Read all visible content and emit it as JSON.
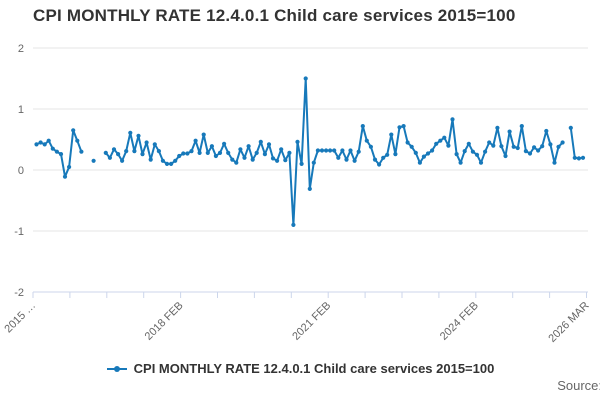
{
  "title": "CPI MONTHLY RATE 12.4.0.1 Child care services 2015=100",
  "legend": {
    "series_label": "CPI MONTHLY RATE 12.4.0.1 Child care services 2015=100"
  },
  "source_label": "Source:",
  "colors": {
    "line": "#1779ba",
    "grid": "#e6e6e6",
    "axis": "#ccd6eb",
    "tick_label": "#666666",
    "title_text": "#333333"
  },
  "chart_data": {
    "type": "line",
    "title": "CPI MONTHLY RATE 12.4.0.1 Child care services 2015=100",
    "xlabel": "",
    "ylabel": "",
    "ylim": [
      -2,
      2
    ],
    "yticks": [
      2,
      1,
      0,
      -1,
      -2
    ],
    "ytick_labels": [
      "2",
      "1",
      "0",
      "-1",
      "-2"
    ],
    "grid": "horizontal",
    "legend_position": "bottom",
    "marker": "circle",
    "x_axis": {
      "tick_count": 16,
      "labels": [
        {
          "tick_index": 0,
          "text": "2015 …"
        },
        {
          "tick_index": 4,
          "text": "2018 FEB"
        },
        {
          "tick_index": 8,
          "text": "2021 FEB"
        },
        {
          "tick_index": 12,
          "text": "2024 FEB"
        },
        {
          "tick_index": 15,
          "text": "2026 MAR"
        }
      ]
    },
    "series": [
      {
        "name": "CPI MONTHLY RATE 12.4.0.1 Child care services 2015=100",
        "start": "2015 JAN",
        "end": "2026 MAR",
        "frequency": "monthly",
        "values": [
          0.42,
          0.45,
          0.42,
          0.48,
          0.35,
          0.3,
          0.26,
          -0.11,
          0.05,
          0.65,
          0.48,
          0.3,
          null,
          null,
          0.15,
          null,
          null,
          0.28,
          0.2,
          0.34,
          0.26,
          0.15,
          0.31,
          0.61,
          0.31,
          0.56,
          0.26,
          0.45,
          0.17,
          0.42,
          0.31,
          0.15,
          0.1,
          0.1,
          0.15,
          0.23,
          0.27,
          0.27,
          0.31,
          0.48,
          0.28,
          0.58,
          0.28,
          0.39,
          0.23,
          0.28,
          0.43,
          0.28,
          0.17,
          0.12,
          0.34,
          0.2,
          0.39,
          0.17,
          0.28,
          0.46,
          0.26,
          0.42,
          0.19,
          0.15,
          0.34,
          0.16,
          0.28,
          -0.9,
          0.46,
          0.1,
          1.5,
          -0.31,
          0.12,
          0.32,
          0.32,
          0.32,
          0.32,
          0.32,
          0.2,
          0.32,
          0.17,
          0.32,
          0.15,
          0.3,
          0.72,
          0.48,
          0.38,
          0.17,
          0.09,
          0.2,
          0.25,
          0.58,
          0.26,
          0.7,
          0.72,
          0.45,
          0.38,
          0.28,
          0.12,
          0.22,
          0.27,
          0.32,
          0.43,
          0.48,
          0.53,
          0.4,
          0.83,
          0.26,
          0.12,
          0.31,
          0.43,
          0.3,
          0.25,
          0.12,
          0.3,
          0.45,
          0.4,
          0.69,
          0.39,
          0.23,
          0.63,
          0.38,
          0.36,
          0.72,
          0.31,
          0.27,
          0.37,
          0.32,
          0.39,
          0.64,
          0.42,
          0.12,
          0.38,
          0.45,
          null,
          0.69,
          0.2,
          0.19,
          0.2
        ]
      }
    ]
  }
}
